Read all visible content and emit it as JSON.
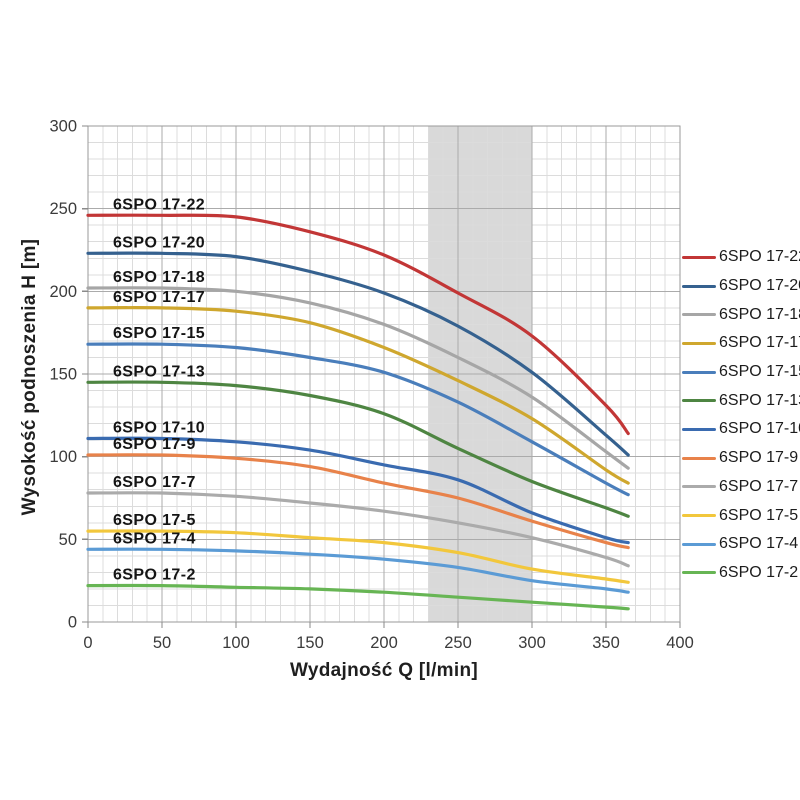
{
  "page": {
    "background": "#ffffff"
  },
  "chart_data": {
    "type": "line",
    "title": "",
    "xlabel": "Wydajność Q [l/min]",
    "ylabel": "Wysokość podnoszenia H [m]",
    "xlim": [
      0,
      400
    ],
    "ylim": [
      0,
      300
    ],
    "x_ticks": [
      0,
      50,
      100,
      150,
      200,
      250,
      300,
      350,
      400
    ],
    "y_ticks": [
      0,
      50,
      100,
      150,
      200,
      250,
      300
    ],
    "x_minor_step": 10,
    "y_minor_step": 10,
    "grid": "minor and major gridlines on",
    "legend_position": "right",
    "highlight_band": {
      "x_from": 230,
      "x_to": 300,
      "color": "#d9d9d9"
    },
    "x": [
      0,
      50,
      100,
      150,
      200,
      250,
      300,
      350,
      365
    ],
    "series": [
      {
        "name": "6SPO 17-22",
        "color": "#c23636",
        "values": [
          246,
          246,
          245,
          236,
          222,
          199,
          173,
          131,
          114
        ]
      },
      {
        "name": "6SPO 17-20",
        "color": "#35618f",
        "values": [
          223,
          223,
          221,
          212,
          199,
          179,
          151,
          113,
          101
        ]
      },
      {
        "name": "6SPO 17-18",
        "color": "#a6a6a6",
        "values": [
          202,
          202,
          200,
          193,
          180,
          160,
          136,
          103,
          93
        ]
      },
      {
        "name": "6SPO 17-17",
        "color": "#cfa72e",
        "values": [
          190,
          190,
          188,
          181,
          166,
          146,
          123,
          92,
          84
        ]
      },
      {
        "name": "6SPO 17-15",
        "color": "#4a7ebb",
        "values": [
          168,
          168,
          166,
          160,
          151,
          133,
          109,
          84,
          77
        ]
      },
      {
        "name": "6SPO 17-13",
        "color": "#4e8542",
        "values": [
          145,
          145,
          143,
          137,
          126,
          105,
          85,
          69,
          64
        ]
      },
      {
        "name": "6SPO 17-10",
        "color": "#3a6bb0",
        "values": [
          111,
          111,
          109,
          104,
          95,
          86,
          66,
          51,
          48
        ]
      },
      {
        "name": "6SPO 17-9",
        "color": "#e8824a",
        "values": [
          101,
          101,
          99,
          94,
          84,
          75,
          61,
          48,
          45
        ]
      },
      {
        "name": "6SPO 17-7",
        "color": "#ababab",
        "values": [
          78,
          78,
          76,
          72,
          67,
          60,
          51,
          39,
          34
        ]
      },
      {
        "name": "6SPO 17-5",
        "color": "#f2c73c",
        "values": [
          55,
          55,
          54,
          51,
          48,
          42,
          32,
          26,
          24
        ]
      },
      {
        "name": "6SPO 17-4",
        "color": "#5b9bd5",
        "values": [
          44,
          44,
          43,
          41,
          38,
          33,
          25,
          20,
          18
        ]
      },
      {
        "name": "6SPO 17-2",
        "color": "#67b554",
        "values": [
          22,
          22,
          21,
          20,
          18,
          15,
          12,
          9,
          8
        ]
      }
    ]
  }
}
